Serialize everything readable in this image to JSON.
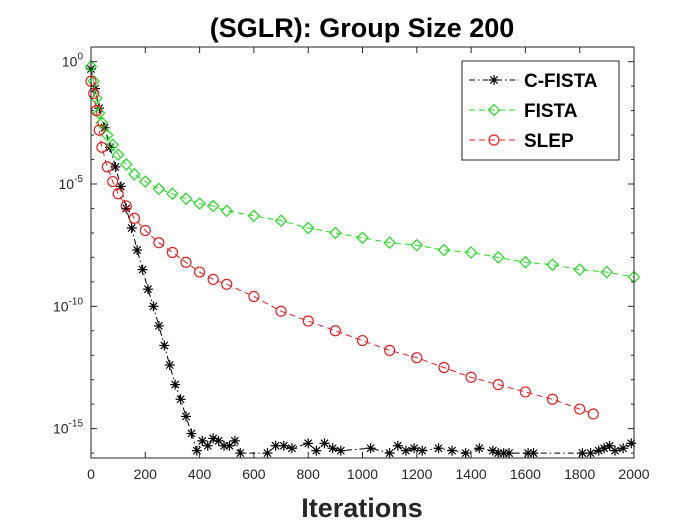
{
  "chart_data": {
    "type": "line",
    "title": "(SGLR): Group Size 200",
    "xlabel": "Iterations",
    "ylabel": "",
    "xlim": [
      0,
      2000
    ],
    "ylim_log10": [
      -16.2,
      0.6
    ],
    "y_scale": "log",
    "xticks": [
      0,
      200,
      400,
      600,
      800,
      1000,
      1200,
      1400,
      1600,
      1800,
      2000
    ],
    "yticks": [
      {
        "base": "10",
        "exp": "0",
        "value_log10": 0
      },
      {
        "base": "10",
        "exp": "-5",
        "value_log10": -5
      },
      {
        "base": "10",
        "exp": "-10",
        "value_log10": -10
      },
      {
        "base": "10",
        "exp": "-15",
        "value_log10": -15
      }
    ],
    "legend_position": "top-right",
    "series": [
      {
        "name": "C-FISTA",
        "color": "#000000",
        "marker": "asterisk",
        "linestyle": "dashdot",
        "x": [
          0,
          15,
          30,
          50,
          70,
          90,
          110,
          130,
          150,
          170,
          190,
          210,
          230,
          250,
          270,
          290,
          310,
          330,
          350,
          370,
          390,
          410,
          430,
          450,
          470,
          490,
          510,
          530,
          550,
          650,
          680,
          710,
          740,
          800,
          830,
          860,
          890,
          920,
          1030,
          1100,
          1130,
          1160,
          1190,
          1220,
          1280,
          1330,
          1380,
          1430,
          1480,
          1500,
          1520,
          1540,
          1610,
          1630,
          1810,
          1840,
          1870,
          1890,
          1910,
          1930,
          1960,
          1990
        ],
        "log10_y": [
          -0.3,
          -1.1,
          -1.9,
          -2.7,
          -3.5,
          -4.3,
          -5.1,
          -6.0,
          -6.8,
          -7.7,
          -8.5,
          -9.3,
          -10.0,
          -10.8,
          -11.6,
          -12.4,
          -13.2,
          -13.8,
          -14.5,
          -15.2,
          -15.9,
          -15.5,
          -15.7,
          -15.4,
          -15.5,
          -15.7,
          -15.7,
          -15.5,
          -16.0,
          -16.0,
          -15.7,
          -15.7,
          -15.8,
          -15.6,
          -15.9,
          -15.6,
          -15.8,
          -15.9,
          -15.8,
          -16.0,
          -15.7,
          -15.9,
          -15.8,
          -15.9,
          -15.8,
          -15.9,
          -16.0,
          -15.8,
          -15.9,
          -16.0,
          -16.0,
          -16.0,
          -16.0,
          -16.0,
          -16.0,
          -16.0,
          -15.9,
          -15.8,
          -15.7,
          -15.9,
          -15.8,
          -15.6
        ]
      },
      {
        "name": "FISTA",
        "color": "#22dd22",
        "marker": "diamond",
        "linestyle": "dashed",
        "x": [
          0,
          10,
          20,
          30,
          40,
          60,
          80,
          100,
          130,
          160,
          200,
          250,
          300,
          350,
          400,
          450,
          500,
          600,
          700,
          800,
          900,
          1000,
          1100,
          1200,
          1300,
          1400,
          1500,
          1600,
          1700,
          1800,
          1900,
          2000
        ],
        "log10_y": [
          -0.2,
          -0.8,
          -1.5,
          -2.1,
          -2.5,
          -3.0,
          -3.4,
          -3.8,
          -4.2,
          -4.6,
          -4.9,
          -5.2,
          -5.4,
          -5.6,
          -5.8,
          -5.9,
          -6.1,
          -6.3,
          -6.5,
          -6.8,
          -7.0,
          -7.2,
          -7.4,
          -7.5,
          -7.7,
          -7.8,
          -8.0,
          -8.2,
          -8.3,
          -8.5,
          -8.6,
          -8.8
        ]
      },
      {
        "name": "SLEP",
        "color": "#e42020",
        "marker": "circle",
        "linestyle": "dashed",
        "x": [
          0,
          10,
          20,
          30,
          40,
          60,
          80,
          100,
          130,
          160,
          200,
          250,
          300,
          350,
          400,
          450,
          500,
          600,
          700,
          800,
          900,
          1000,
          1100,
          1200,
          1300,
          1400,
          1500,
          1600,
          1700,
          1800,
          1850
        ],
        "log10_y": [
          -0.8,
          -1.3,
          -2.0,
          -2.8,
          -3.5,
          -4.3,
          -4.9,
          -5.4,
          -5.9,
          -6.4,
          -6.9,
          -7.4,
          -7.8,
          -8.2,
          -8.6,
          -8.9,
          -9.1,
          -9.6,
          -10.2,
          -10.6,
          -11.0,
          -11.4,
          -11.8,
          -12.1,
          -12.5,
          -12.9,
          -13.2,
          -13.5,
          -13.8,
          -14.2,
          -14.4
        ]
      }
    ]
  }
}
